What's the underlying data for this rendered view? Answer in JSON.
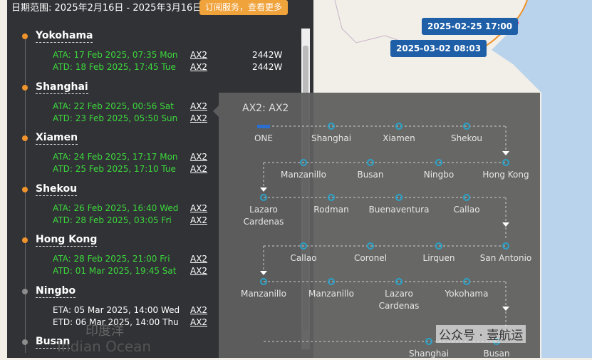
{
  "header": {
    "date_range": "日期范围: 2025年2月16日 - 2025年3月16日",
    "subscribe_button": "订阅服务，查看更多"
  },
  "ports": [
    {
      "name": "Yokohama",
      "dot_color": "#f0932b",
      "events": [
        {
          "text": "ATA: 17 Feb 2025, 07:35 Mon",
          "service": "AX2",
          "voyage": "2442W",
          "color": "#3bd83b"
        },
        {
          "text": "ATD: 18 Feb 2025, 17:45 Tue",
          "service": "AX2",
          "voyage": "2442W",
          "color": "#3bd83b"
        }
      ]
    },
    {
      "name": "Shanghai",
      "dot_color": "#f0932b",
      "events": [
        {
          "text": "ATA: 22 Feb 2025, 00:56 Sat",
          "service": "AX2",
          "color": "#3bd83b"
        },
        {
          "text": "ATD: 23 Feb 2025, 05:50 Sun",
          "service": "AX2",
          "color": "#3bd83b"
        }
      ]
    },
    {
      "name": "Xiamen",
      "dot_color": "#f0932b",
      "events": [
        {
          "text": "ATA: 24 Feb 2025, 17:17 Mon",
          "service": "AX2",
          "color": "#3bd83b"
        },
        {
          "text": "ATD: 25 Feb 2025, 17:10 Tue",
          "service": "AX2",
          "color": "#3bd83b"
        }
      ]
    },
    {
      "name": "Shekou",
      "dot_color": "#f0932b",
      "events": [
        {
          "text": "ATA: 26 Feb 2025, 16:40 Wed",
          "service": "AX2",
          "color": "#3bd83b"
        },
        {
          "text": "ATD: 28 Feb 2025, 03:05 Fri",
          "service": "AX2",
          "color": "#3bd83b"
        }
      ]
    },
    {
      "name": "Hong Kong",
      "dot_color": "#f0932b",
      "events": [
        {
          "text": "ATA: 28 Feb 2025, 21:00 Fri",
          "service": "AX2",
          "color": "#3bd83b"
        },
        {
          "text": "ATD: 01 Mar 2025, 19:45 Sat",
          "service": "AX2",
          "color": "#3bd83b"
        }
      ]
    },
    {
      "name": "Ningbo",
      "dot_color": "#8c8c8c",
      "events": [
        {
          "text": "ETA: 05 Mar 2025, 14:00 Wed",
          "service": "AX2",
          "color": "#ffffff"
        },
        {
          "text": "ETD: 06 Mar 2025, 14:00 Thu",
          "service": "AX2",
          "color": "#ffffff"
        }
      ]
    },
    {
      "name": "Busan",
      "dot_color": "#8c8c8c",
      "events": []
    }
  ],
  "map": {
    "labels": [
      "印度洋",
      "Indian Ocean"
    ],
    "markers": [
      "2025-02-25 17:00",
      "2025-03-02 08:03"
    ]
  },
  "route": {
    "title": "AX2: AX2",
    "rows": [
      [
        "ONE",
        "Shanghai",
        "Xiamen",
        "Shekou"
      ],
      [
        "Manzanillo",
        "Busan",
        "Ningbo",
        "Hong Kong"
      ],
      [
        "Lazaro Cardenas",
        "Rodman",
        "Buenaventura",
        "Callao"
      ],
      [
        "Callao",
        "Coronel",
        "Lirquen",
        "San Antonio"
      ],
      [
        "Manzanillo",
        "Manzanillo",
        "Lazaro Cardenas",
        "Yokohama"
      ],
      [
        "Shanghai",
        "Busan"
      ]
    ]
  },
  "watermark": "公众号 · 壹航运"
}
